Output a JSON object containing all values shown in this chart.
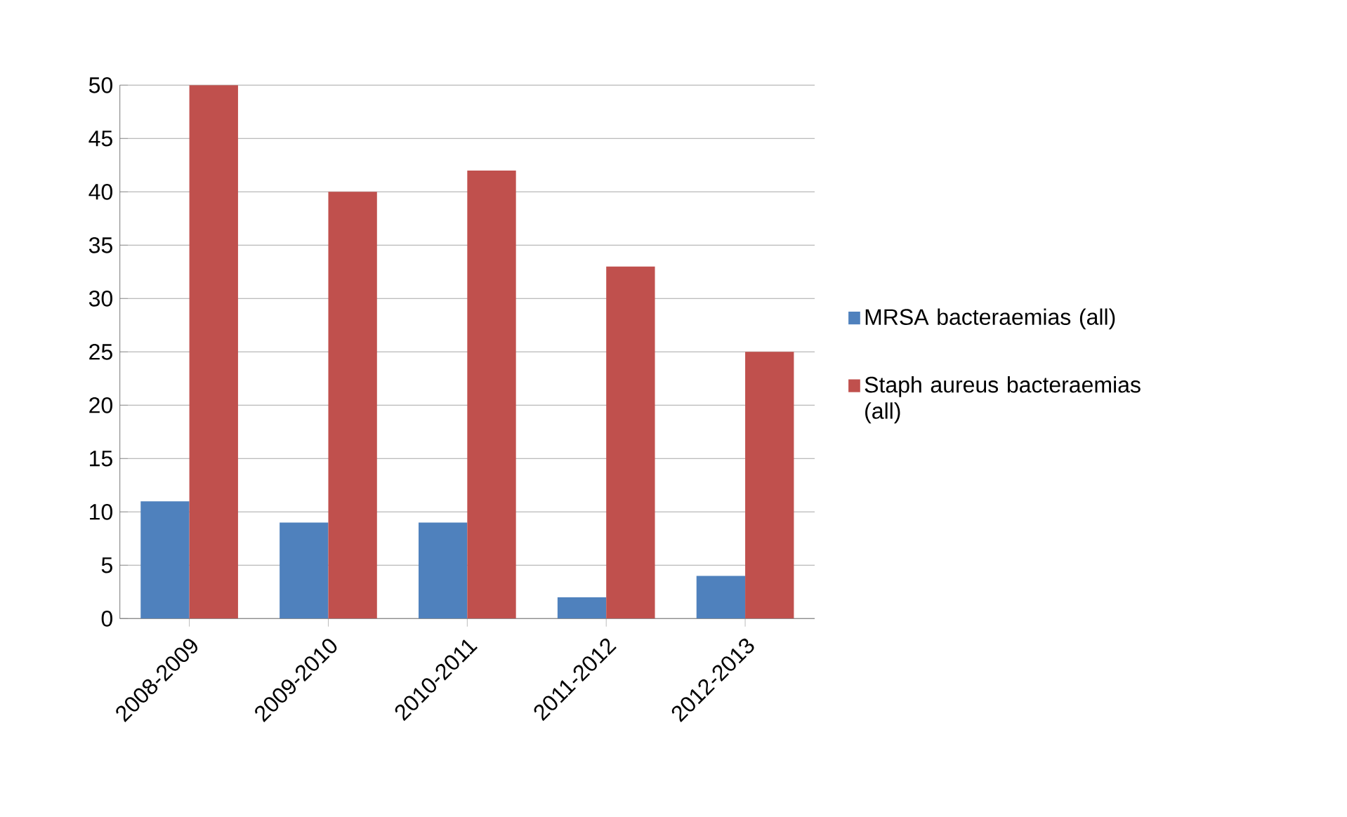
{
  "chart_data": {
    "type": "bar",
    "categories": [
      "2008-2009",
      "2009-2010",
      "2010-2011",
      "2011-2012",
      "2012-2013"
    ],
    "series": [
      {
        "name": "MRSA bacteraemias (all)",
        "color": "#4f81bd",
        "values": [
          11,
          9,
          9,
          2,
          4
        ]
      },
      {
        "name": "Staph aureus bacteraemias (all)",
        "color": "#c0504d",
        "values": [
          50,
          40,
          42,
          33,
          25
        ]
      }
    ],
    "ylim": [
      0,
      50
    ],
    "yticks": [
      0,
      5,
      10,
      15,
      20,
      25,
      30,
      35,
      40,
      45,
      50
    ],
    "grid": "y",
    "legend": "right"
  }
}
